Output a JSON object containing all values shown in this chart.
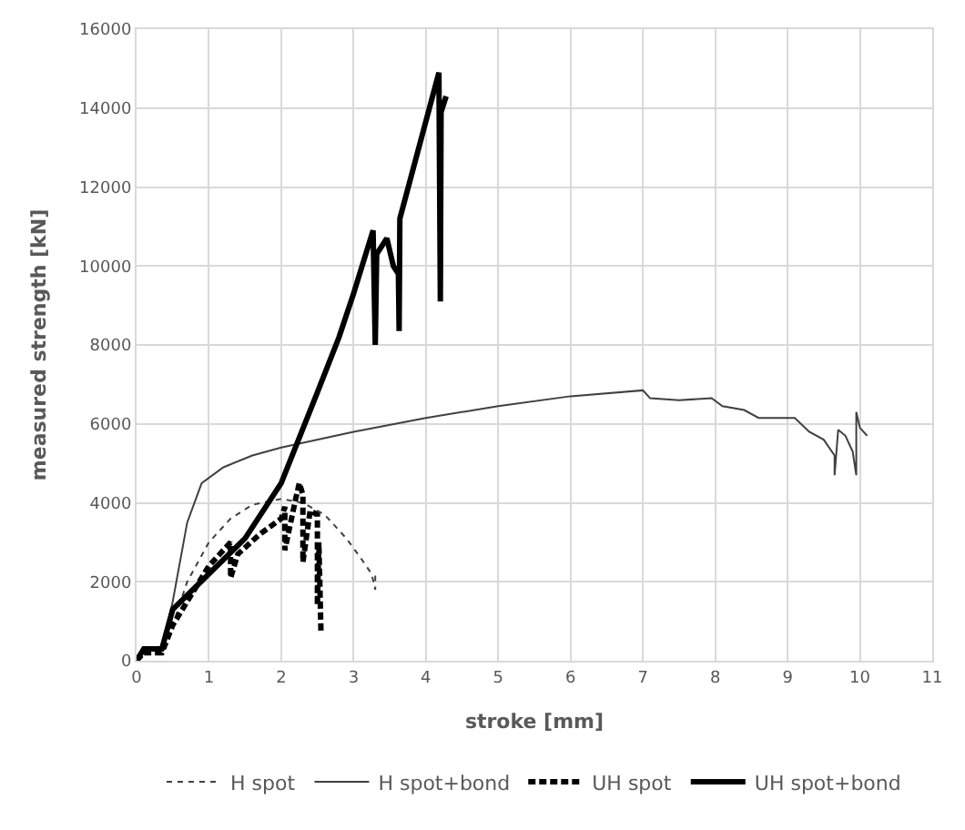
{
  "chart_data": {
    "type": "line",
    "xlabel": "stroke [mm]",
    "ylabel": "measured strength [kN]",
    "xlim": [
      0,
      11
    ],
    "xticks": [
      0,
      1,
      2,
      3,
      4,
      5,
      6,
      7,
      8,
      9,
      10,
      11
    ],
    "ylim": [
      0,
      16000
    ],
    "yticks": [
      0,
      2000,
      4000,
      6000,
      8000,
      10000,
      12000,
      14000,
      16000
    ],
    "grid": true,
    "legend": "bottom",
    "marker": "none",
    "series": [
      {
        "name": "H spot",
        "color": "#404040",
        "line_style": "dotted",
        "x": [
          0,
          0.1,
          0.35,
          0.5,
          0.7,
          1.0,
          1.3,
          1.6,
          2.0,
          2.3,
          2.6,
          2.9,
          3.1,
          3.25,
          3.3,
          3.3
        ],
        "values": [
          0,
          200,
          250,
          900,
          2000,
          3000,
          3600,
          3950,
          4100,
          4000,
          3700,
          3100,
          2600,
          2200,
          1800,
          2200
        ]
      },
      {
        "name": "H spot+bond",
        "color": "#404040",
        "line_style": "solid",
        "x": [
          0,
          0.1,
          0.35,
          0.5,
          0.7,
          0.9,
          1.2,
          1.6,
          2,
          3,
          4,
          5,
          6,
          7,
          7.1,
          7.5,
          7.95,
          8.1,
          8.4,
          8.6,
          9.1,
          9.3,
          9.5,
          9.65,
          9.65,
          9.7,
          9.8,
          9.9,
          9.95,
          9.95,
          10,
          10.1
        ],
        "values": [
          0,
          250,
          280,
          1500,
          3500,
          4500,
          4900,
          5200,
          5400,
          5800,
          6150,
          6450,
          6700,
          6850,
          6650,
          6600,
          6650,
          6450,
          6350,
          6150,
          6150,
          5800,
          5600,
          5200,
          4700,
          5850,
          5700,
          5300,
          4700,
          6300,
          5900,
          5700
        ]
      },
      {
        "name": "UH spot",
        "color": "#000000",
        "line_style": "dashed",
        "x": [
          0,
          0.1,
          0.35,
          0.5,
          0.8,
          1.0,
          1.3,
          1.3,
          1.4,
          1.7,
          2.0,
          2.05,
          2.05,
          2.2,
          2.25,
          2.3,
          2.3,
          2.4,
          2.5,
          2.5,
          2.52,
          2.55
        ],
        "values": [
          0,
          200,
          200,
          900,
          1800,
          2400,
          3000,
          2100,
          2700,
          3200,
          3600,
          3900,
          2800,
          4100,
          4500,
          4200,
          2500,
          3800,
          3700,
          1400,
          3000,
          700
        ]
      },
      {
        "name": "UH spot+bond",
        "color": "#000000",
        "line_style": "solid",
        "x": [
          0,
          0.1,
          0.35,
          0.5,
          1.0,
          1.5,
          2.0,
          2.5,
          2.8,
          3.0,
          3.27,
          3.3,
          3.32,
          3.46,
          3.55,
          3.62,
          3.63,
          3.64,
          4.18,
          4.2,
          4.21,
          4.28
        ],
        "values": [
          0,
          300,
          300,
          1300,
          2200,
          3100,
          4500,
          6800,
          8200,
          9300,
          10900,
          8000,
          10300,
          10700,
          10000,
          9800,
          8350,
          11200,
          14900,
          9100,
          13900,
          14300
        ]
      }
    ]
  }
}
